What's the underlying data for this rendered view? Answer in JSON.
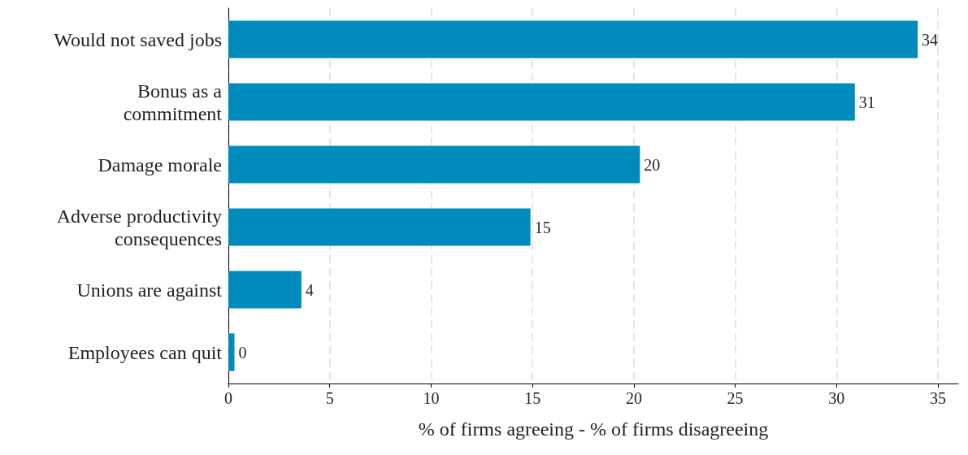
{
  "chart_data": {
    "type": "bar",
    "orientation": "horizontal",
    "xlabel": "% of firms agreeing - % of firms disagreeing",
    "categories": [
      "Would not saved jobs",
      "Bonus as a\ncommitment",
      "Damage morale",
      "Adverse productivity\nconsequences",
      "Unions are against",
      "Employees can quit"
    ],
    "values": [
      34,
      30.9,
      20.3,
      14.9,
      3.6,
      0.3
    ],
    "value_labels": [
      "34",
      "31",
      "20",
      "15",
      "4",
      "0"
    ],
    "color": "#008bbd",
    "xlim": [
      0,
      36
    ],
    "xticks": [
      0,
      5,
      10,
      15,
      20,
      25,
      30,
      35
    ],
    "grid": "x"
  }
}
